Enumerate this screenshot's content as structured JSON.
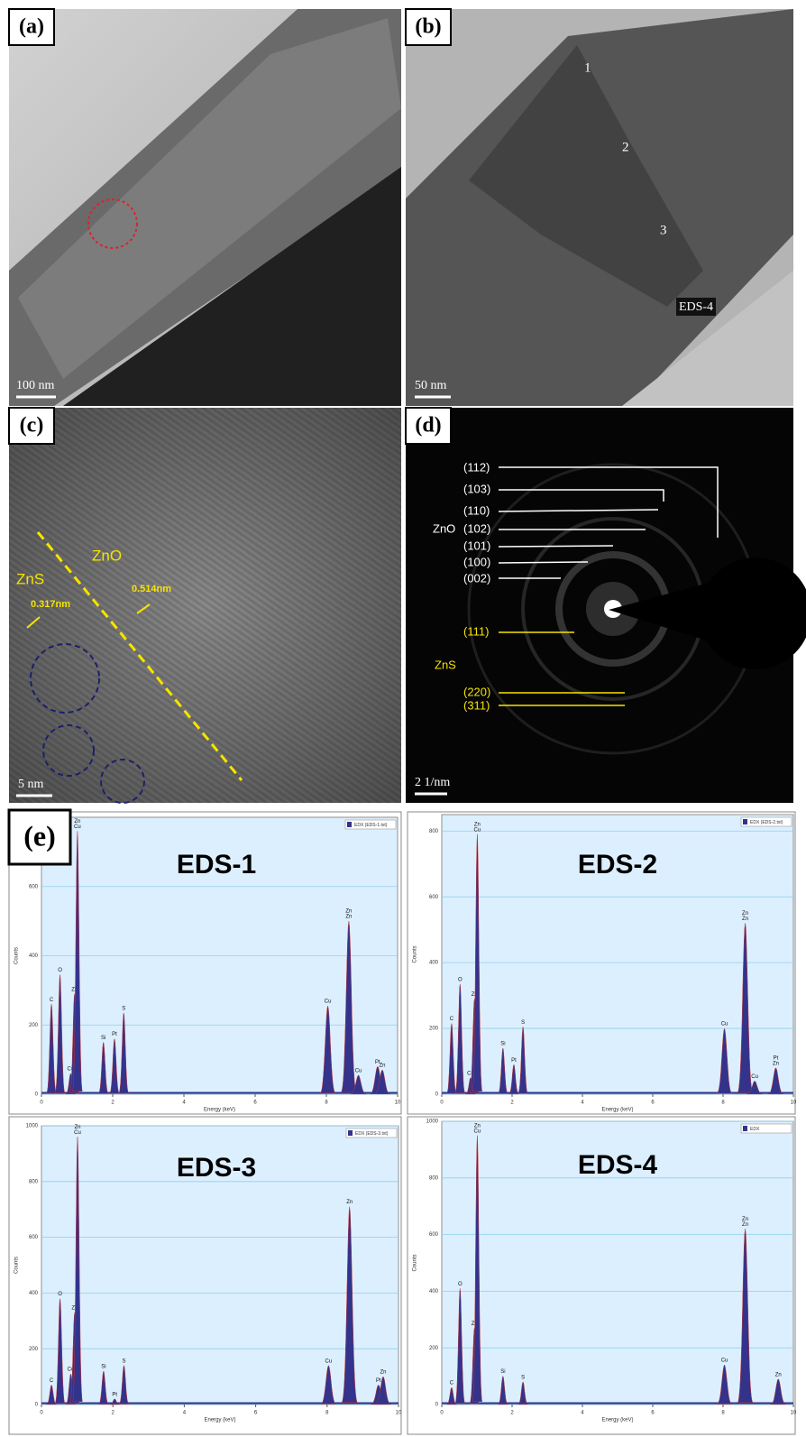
{
  "figure": {
    "panel_a": {
      "label": "(a)",
      "scale_bar": "100 nm"
    },
    "panel_b": {
      "label": "(b)",
      "points": [
        "1",
        "2",
        "3"
      ],
      "eds_label": "EDS-4",
      "scale_bar": "50 nm"
    },
    "panel_c": {
      "label": "(c)",
      "phases": [
        "ZnO",
        "ZnS"
      ],
      "spacings": [
        "0.317nm",
        "0.514nm"
      ],
      "scale_bar": "5 nm"
    },
    "panel_d": {
      "label": "(d)",
      "zno_label": "ZnO",
      "zno_planes": [
        "(112)",
        "(103)",
        "(110)",
        "(102)",
        "(101)",
        "(100)",
        "(002)"
      ],
      "zns_label": "ZnS",
      "zns_planes": [
        "(111)",
        "(220)",
        "(311)"
      ],
      "scale_bar": "2 1/nm"
    },
    "panel_e": {
      "label": "(e)"
    }
  },
  "chart_data": [
    {
      "type": "spectrum",
      "title": "EDS-1",
      "legend": "EDX (EDS-1.txt)",
      "x_label": "Energy (keV)",
      "y_label": "Counts",
      "color": "#33338c",
      "xlim": [
        0,
        10
      ],
      "xticks": [
        0,
        2,
        4,
        6,
        8,
        10
      ],
      "ylim": [
        0,
        800
      ],
      "yticks": [
        0,
        200,
        400,
        600
      ],
      "grid": true,
      "x": [
        0.28,
        0.52,
        0.82,
        0.93,
        1.01,
        1.74,
        2.05,
        2.31,
        8.04,
        8.63,
        8.9,
        9.44,
        9.57
      ],
      "values": [
        260,
        345,
        60,
        290,
        760,
        150,
        160,
        235,
        255,
        500,
        55,
        80,
        70
      ],
      "peak_labels": [
        [
          "C"
        ],
        [
          "O"
        ],
        [
          "Cu"
        ],
        [
          "Zn"
        ],
        [
          "Zn",
          "Cu"
        ],
        [
          "Si"
        ],
        [
          "Pt"
        ],
        [
          "S"
        ],
        [
          "Cu"
        ],
        [
          "Zn",
          "Zn"
        ],
        [
          "Cu"
        ],
        [
          "Pt"
        ],
        [
          "Zn"
        ]
      ]
    },
    {
      "type": "spectrum",
      "title": "EDS-2",
      "legend": "EDX (EDS-2.txt)",
      "x_label": "Energy (keV)",
      "y_label": "Counts",
      "color": "#33338c",
      "xlim": [
        0,
        10
      ],
      "xticks": [
        0,
        2,
        4,
        6,
        8,
        10
      ],
      "ylim": [
        0,
        850
      ],
      "yticks": [
        0,
        200,
        400,
        600,
        800
      ],
      "grid": true,
      "x": [
        0.28,
        0.52,
        0.82,
        0.93,
        1.01,
        1.74,
        2.05,
        2.31,
        8.04,
        8.63,
        8.9,
        9.5
      ],
      "values": [
        215,
        335,
        50,
        290,
        790,
        140,
        90,
        205,
        200,
        520,
        40,
        80
      ],
      "peak_labels": [
        [
          "C"
        ],
        [
          "O"
        ],
        [
          "Cu"
        ],
        [
          "Zn"
        ],
        [
          "Zn",
          "Cu"
        ],
        [
          "Si"
        ],
        [
          "Pt"
        ],
        [
          "S"
        ],
        [
          "Cu"
        ],
        [
          "Zn",
          "Zn"
        ],
        [
          "Cu"
        ],
        [
          "Pt",
          "Zn"
        ]
      ]
    },
    {
      "type": "spectrum",
      "title": "EDS-3",
      "legend": "EDX (EDS-3.txt)",
      "x_label": "Energy (keV)",
      "y_label": "Counts",
      "color": "#33338c",
      "xlim": [
        0,
        10
      ],
      "xticks": [
        0,
        2,
        4,
        6,
        8,
        10
      ],
      "ylim": [
        0,
        1000
      ],
      "yticks": [
        0,
        200,
        400,
        600,
        800,
        1000
      ],
      "grid": true,
      "x": [
        0.28,
        0.52,
        0.82,
        0.93,
        1.01,
        1.74,
        2.05,
        2.31,
        8.04,
        8.63,
        9.44,
        9.57
      ],
      "values": [
        70,
        380,
        110,
        330,
        960,
        120,
        20,
        140,
        140,
        710,
        70,
        100
      ],
      "peak_labels": [
        [
          "C"
        ],
        [
          "O"
        ],
        [
          "Cu"
        ],
        [
          "Zn"
        ],
        [
          "Zn",
          "Cu"
        ],
        [
          "Si"
        ],
        [
          "Pt"
        ],
        [
          "S"
        ],
        [
          "Cu"
        ],
        [
          "Zn"
        ],
        [
          "Pt"
        ],
        [
          "Zn"
        ]
      ]
    },
    {
      "type": "spectrum",
      "title": "EDS-4",
      "legend": "EDX",
      "x_label": "Energy (keV)",
      "y_label": "Counts",
      "color": "#33338c",
      "xlim": [
        0,
        10
      ],
      "xticks": [
        0,
        2,
        4,
        6,
        8,
        10
      ],
      "ylim": [
        0,
        1000
      ],
      "yticks": [
        0,
        200,
        400,
        600,
        800,
        1000
      ],
      "grid": true,
      "x": [
        0.28,
        0.52,
        0.93,
        1.01,
        1.74,
        2.31,
        8.04,
        8.63,
        9.57
      ],
      "values": [
        60,
        410,
        270,
        950,
        100,
        80,
        140,
        620,
        90
      ],
      "peak_labels": [
        [
          "C"
        ],
        [
          "O"
        ],
        [
          "Zn"
        ],
        [
          "Zn",
          "Cu"
        ],
        [
          "Si"
        ],
        [
          "S"
        ],
        [
          "Cu"
        ],
        [
          "Zn",
          "Zn"
        ],
        [
          "Zn"
        ]
      ]
    }
  ]
}
